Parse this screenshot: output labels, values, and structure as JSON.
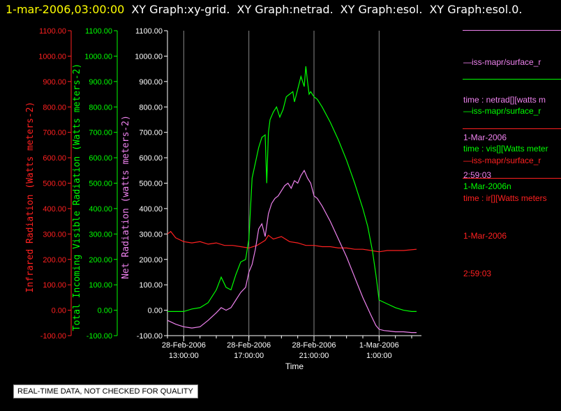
{
  "header": {
    "timestamp": "1-mar-2006,03:00:00",
    "titles": [
      "XY Graph:xy-grid.",
      "XY Graph:netrad.",
      "XY Graph:esol.",
      "XY Graph:esol.0."
    ]
  },
  "notice": "REAL-TIME DATA, NOT CHECKED FOR QUALITY",
  "colors": {
    "infrared": "#ff2020",
    "visible": "#00ff00",
    "net": "#ee82ee",
    "axis_white": "#ffffff",
    "header": "#ffff00"
  },
  "legend": [
    {
      "name": "net",
      "color": "#ee82ee",
      "lines": [
        "—iss-mapr/surface_r",
        "time : netrad[][watts m",
        "1-Mar-2006",
        "2:59:03"
      ]
    },
    {
      "name": "visible",
      "color": "#00ff00",
      "lines": [
        "—iss-mapr/surface_r",
        "time : vis[][Watts meter",
        "1-Mar-2006n"
      ]
    },
    {
      "name": "infrared",
      "color": "#ff2020",
      "lines": [
        "—iss-mapr/surface_r",
        "time : ir[][Watts meters",
        "1-Mar-2006",
        "2:59:03"
      ]
    }
  ],
  "chart_data": {
    "type": "line",
    "xlabel": "Time",
    "x_ticks": [
      {
        "hour": 13,
        "label1": "28-Feb-2006",
        "label2": "13:00:00"
      },
      {
        "hour": 17,
        "label1": "28-Feb-2006",
        "label2": "17:00:00"
      },
      {
        "hour": 21,
        "label1": "28-Feb-2006",
        "label2": "21:00:00"
      },
      {
        "hour": 25,
        "label1": "1-Mar-2006",
        "label2": "1:00:00"
      }
    ],
    "x_unit": "hours since 2006-02-28 00:00",
    "xlim": [
      12.0,
      27.6
    ],
    "ylim": [
      -100,
      1100
    ],
    "y_ticks": [
      -100,
      0,
      100,
      200,
      300,
      400,
      500,
      600,
      700,
      800,
      900,
      1000,
      1100
    ],
    "y_tick_labels": [
      "-100.00",
      "0.00",
      "100.00",
      "200.00",
      "300.00",
      "400.00",
      "500.00",
      "600.00",
      "700.00",
      "800.00",
      "900.00",
      "1000.00",
      "1100.00"
    ],
    "axes": [
      {
        "name": "infrared",
        "label": "Infrared Radiation (Watts meters-2)",
        "color": "#ff2020"
      },
      {
        "name": "visible",
        "label": "Total Incoming Visible Radiation (Watts meters-2)",
        "color": "#00ff00"
      },
      {
        "name": "net",
        "label": "Net Radiation (watts meters-2)",
        "color": "#ee82ee"
      }
    ],
    "series": [
      {
        "name": "infrared",
        "color": "#ff2020",
        "x": [
          12.0,
          12.2,
          12.5,
          13.0,
          13.5,
          14.0,
          14.5,
          15.0,
          15.5,
          16.0,
          16.5,
          17.0,
          17.5,
          18.0,
          18.2,
          18.5,
          19.0,
          19.5,
          20.0,
          20.5,
          21.0,
          21.5,
          22.0,
          22.5,
          23.0,
          23.5,
          24.0,
          24.5,
          25.0,
          25.5,
          26.0,
          26.5,
          27.0,
          27.3
        ],
        "values": [
          300,
          310,
          285,
          270,
          265,
          270,
          260,
          265,
          255,
          255,
          250,
          245,
          255,
          275,
          295,
          280,
          290,
          270,
          265,
          255,
          255,
          250,
          250,
          245,
          245,
          240,
          240,
          235,
          230,
          235,
          235,
          235,
          238,
          240
        ]
      },
      {
        "name": "visible",
        "color": "#00ff00",
        "x": [
          12.0,
          13.0,
          13.5,
          14.0,
          14.5,
          15.0,
          15.3,
          15.6,
          15.9,
          16.2,
          16.5,
          16.8,
          17.0,
          17.2,
          17.4,
          17.6,
          17.8,
          18.0,
          18.1,
          18.2,
          18.3,
          18.5,
          18.7,
          18.9,
          19.1,
          19.3,
          19.5,
          19.7,
          19.8,
          20.0,
          20.2,
          20.4,
          20.5,
          20.6,
          20.7,
          20.8,
          21.0,
          21.2,
          21.5,
          22.0,
          22.5,
          23.0,
          23.5,
          24.0,
          24.3,
          24.6,
          24.8,
          25.0,
          25.5,
          26.0,
          26.5,
          27.0,
          27.3
        ],
        "values": [
          -5,
          -5,
          5,
          10,
          30,
          80,
          130,
          90,
          80,
          140,
          190,
          200,
          280,
          520,
          580,
          640,
          680,
          690,
          500,
          700,
          750,
          780,
          800,
          760,
          790,
          840,
          850,
          860,
          820,
          870,
          920,
          880,
          960,
          900,
          850,
          860,
          840,
          830,
          800,
          740,
          670,
          590,
          500,
          400,
          330,
          230,
          140,
          40,
          25,
          10,
          0,
          -5,
          -5
        ]
      },
      {
        "name": "net",
        "color": "#ee82ee",
        "x": [
          12.0,
          12.5,
          13.0,
          13.5,
          14.0,
          14.5,
          15.0,
          15.3,
          15.6,
          15.9,
          16.2,
          16.5,
          16.8,
          17.0,
          17.2,
          17.4,
          17.6,
          17.8,
          18.0,
          18.2,
          18.4,
          18.6,
          18.8,
          19.0,
          19.2,
          19.4,
          19.6,
          19.8,
          20.0,
          20.2,
          20.4,
          20.6,
          20.8,
          21.0,
          21.2,
          21.5,
          22.0,
          22.5,
          23.0,
          23.5,
          24.0,
          24.5,
          24.8,
          25.0,
          25.3,
          25.6,
          26.0,
          26.5,
          27.0,
          27.3
        ],
        "values": [
          -40,
          -55,
          -65,
          -70,
          -65,
          -40,
          -10,
          10,
          0,
          10,
          40,
          70,
          90,
          150,
          180,
          240,
          320,
          340,
          290,
          380,
          420,
          440,
          450,
          470,
          490,
          500,
          480,
          510,
          500,
          530,
          550,
          520,
          500,
          450,
          440,
          410,
          350,
          280,
          210,
          130,
          50,
          -20,
          -60,
          -75,
          -80,
          -82,
          -85,
          -85,
          -88,
          -88
        ]
      }
    ]
  }
}
